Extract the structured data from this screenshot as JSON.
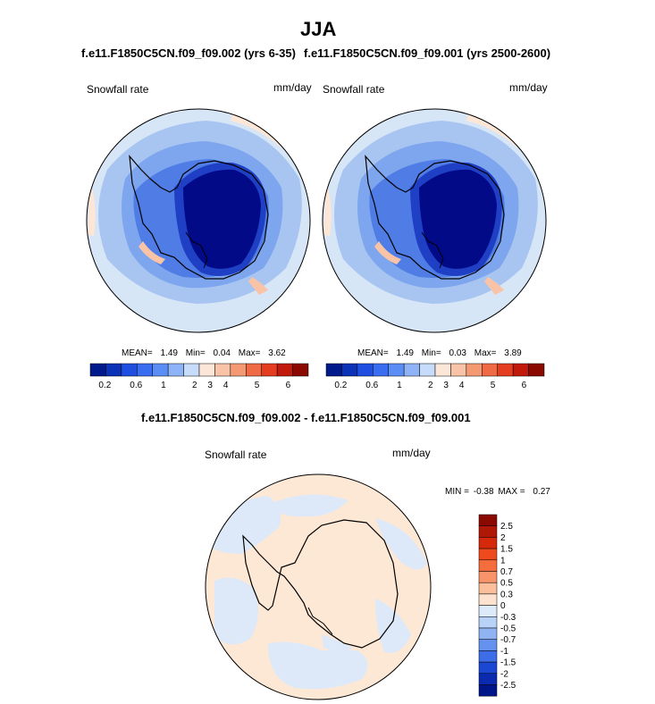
{
  "main_title": "JJA",
  "panels": [
    {
      "title": "f.e11.F1850C5CN.f09_f09.002 (yrs 6-35)",
      "left_label": "Snowfall rate",
      "right_label": "mm/day",
      "stats": {
        "mean_label": "MEAN=",
        "mean": "1.49",
        "min_label": "Min=",
        "min": "0.04",
        "max_label": "Max=",
        "max": "3.62"
      }
    },
    {
      "title": "f.e11.F1850C5CN.f09_f09.001 (yrs 2500-2600)",
      "left_label": "Snowfall rate",
      "right_label": "mm/day",
      "stats": {
        "mean_label": "MEAN=",
        "mean": "1.49",
        "min_label": "Min=",
        "min": "0.03",
        "max_label": "Max=",
        "max": "3.89"
      }
    }
  ],
  "colorbar": {
    "colors": [
      "#001a8c",
      "#0a33b8",
      "#1f4fe0",
      "#3a6ef0",
      "#5a8ef5",
      "#8fb3f7",
      "#c7dcfa",
      "#fbe6d7",
      "#f8c3a6",
      "#f49a73",
      "#ef6b45",
      "#e43d1f",
      "#c11a0a",
      "#8a0a02"
    ],
    "tick_labels": [
      "0.2",
      "0.6",
      "1",
      "2",
      "3",
      "4",
      "5",
      "6"
    ]
  },
  "diff_panel": {
    "title": "f.e11.F1850C5CN.f09_f09.002 - f.e11.F1850C5CN.f09_f09.001",
    "left_label": "Snowfall rate",
    "right_label": "mm/day",
    "minmax": {
      "min_label": "MIN =",
      "min": "-0.38",
      "max_label": "MAX =",
      "max": "0.27"
    },
    "colorbar": {
      "colors": [
        "#8a0a02",
        "#b01806",
        "#d6290c",
        "#ee4a1e",
        "#f66d3d",
        "#f9946a",
        "#fbbf9c",
        "#fde3cf",
        "#ddeafa",
        "#b9d2f7",
        "#8fb3f3",
        "#6592ee",
        "#3d6ee8",
        "#1b48d2",
        "#0a2ab0",
        "#001588"
      ],
      "labels": [
        "2.5",
        "2",
        "1.5",
        "1",
        "0.7",
        "0.5",
        "0.3",
        "0",
        "-0.3",
        "-0.5",
        "-0.7",
        "-1",
        "-1.5",
        "-2",
        "-2.5"
      ]
    }
  },
  "map_colors": {
    "ocean_outer": "#d7e6f7",
    "ocean_mid": "#a8c5f2",
    "ice_blue": "#5f8de8",
    "deep": "#1f3fc4",
    "interior": "#020a88",
    "pale_orange": "#fde6d5",
    "diff_blue": "#dde9f8",
    "diff_orange": "#fde8d6"
  }
}
